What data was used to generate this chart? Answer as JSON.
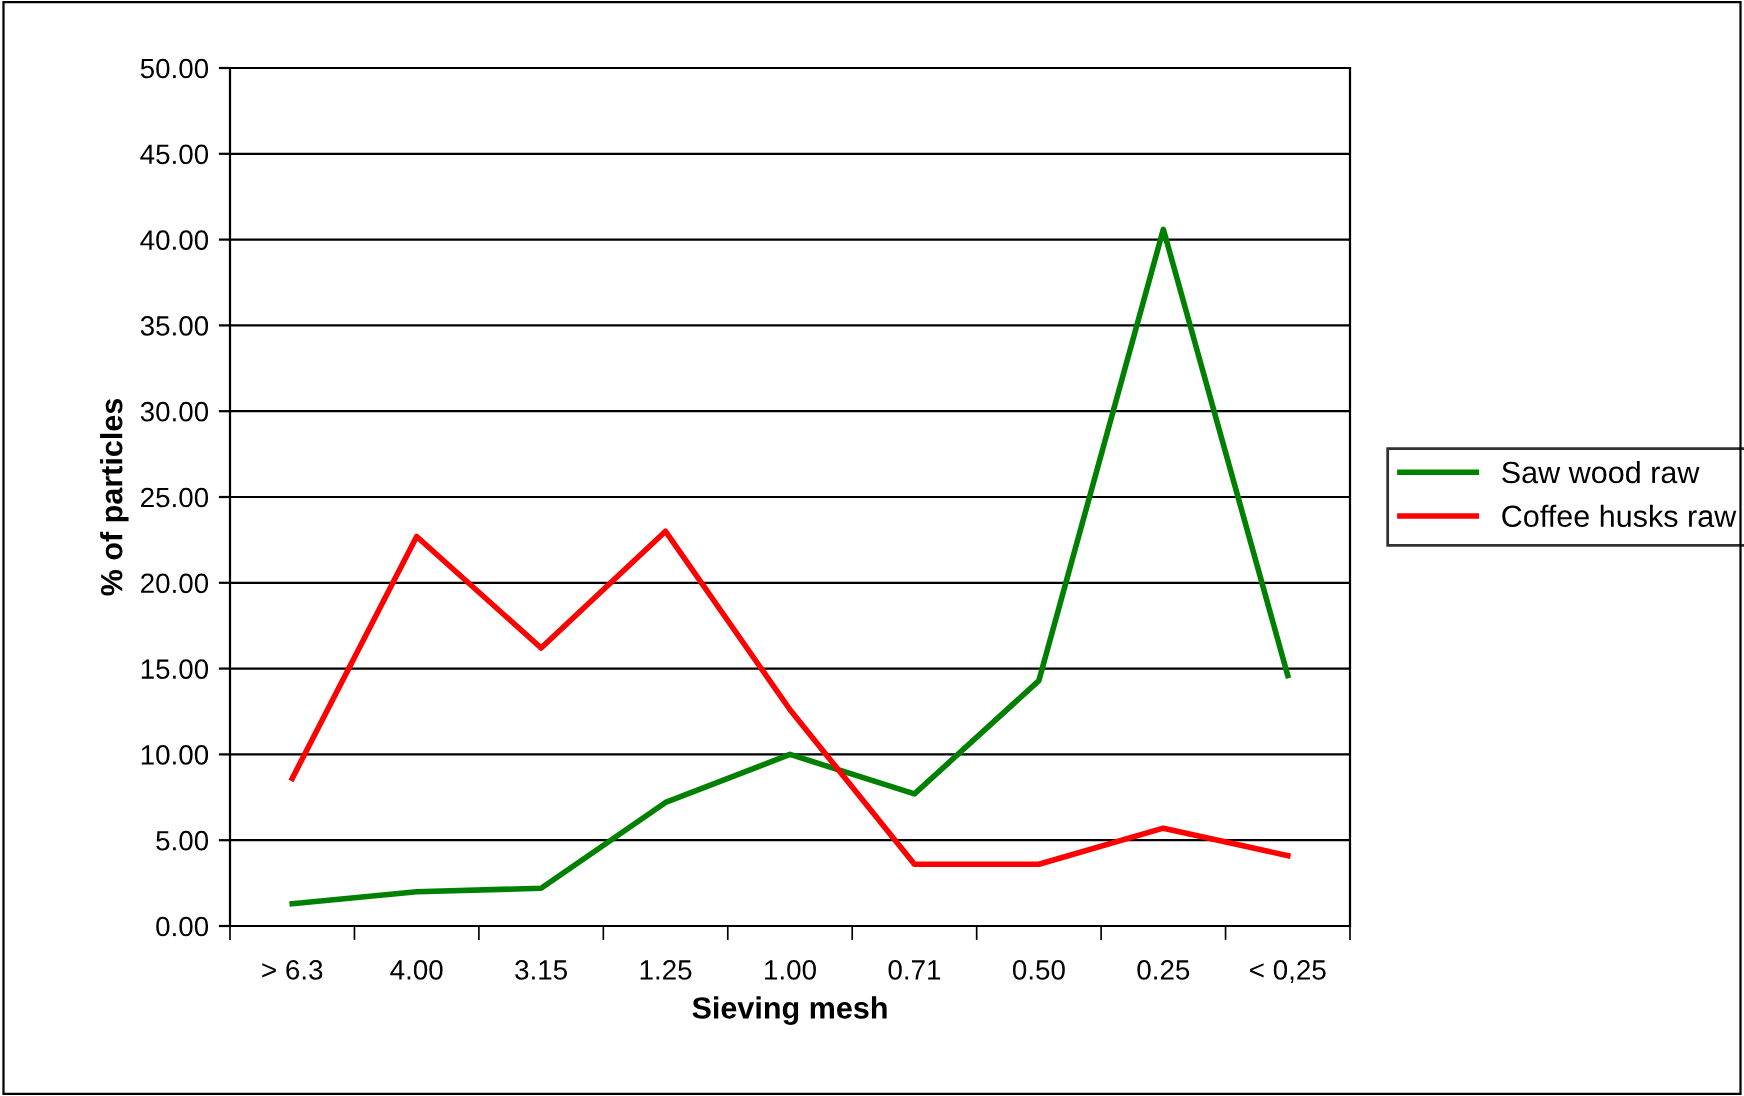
{
  "chart_data": {
    "type": "line",
    "xlabel": "Sieving mesh",
    "ylabel": "% of particles",
    "categories": [
      "> 6.3",
      "4.00",
      "3.15",
      "1.25",
      "1.00",
      "0.71",
      "0.50",
      "0.25",
      "< 0,25"
    ],
    "series": [
      {
        "name": "Saw wood raw",
        "color": "#008000",
        "values": [
          1.3,
          2.0,
          2.2,
          7.2,
          10.0,
          7.7,
          14.3,
          40.6,
          14.6
        ]
      },
      {
        "name": "Coffee husks raw",
        "color": "#ff0000",
        "values": [
          8.6,
          22.7,
          16.2,
          23.0,
          12.6,
          3.6,
          3.6,
          5.7,
          4.1
        ]
      }
    ],
    "ylim": [
      0,
      50
    ],
    "yticks": [
      {
        "value": 0,
        "label": "0.00"
      },
      {
        "value": 5,
        "label": "5.00"
      },
      {
        "value": 10,
        "label": "10.00"
      },
      {
        "value": 15,
        "label": "15.00"
      },
      {
        "value": 20,
        "label": "20.00"
      },
      {
        "value": 25,
        "label": "25.00"
      },
      {
        "value": 30,
        "label": "30.00"
      },
      {
        "value": 35,
        "label": "35.00"
      },
      {
        "value": 40,
        "label": "40.00"
      },
      {
        "value": 45,
        "label": "45.00"
      },
      {
        "value": 50,
        "label": "50.00"
      }
    ],
    "grid": "y",
    "legend": "right",
    "marker": "none",
    "line_style": "solid"
  }
}
